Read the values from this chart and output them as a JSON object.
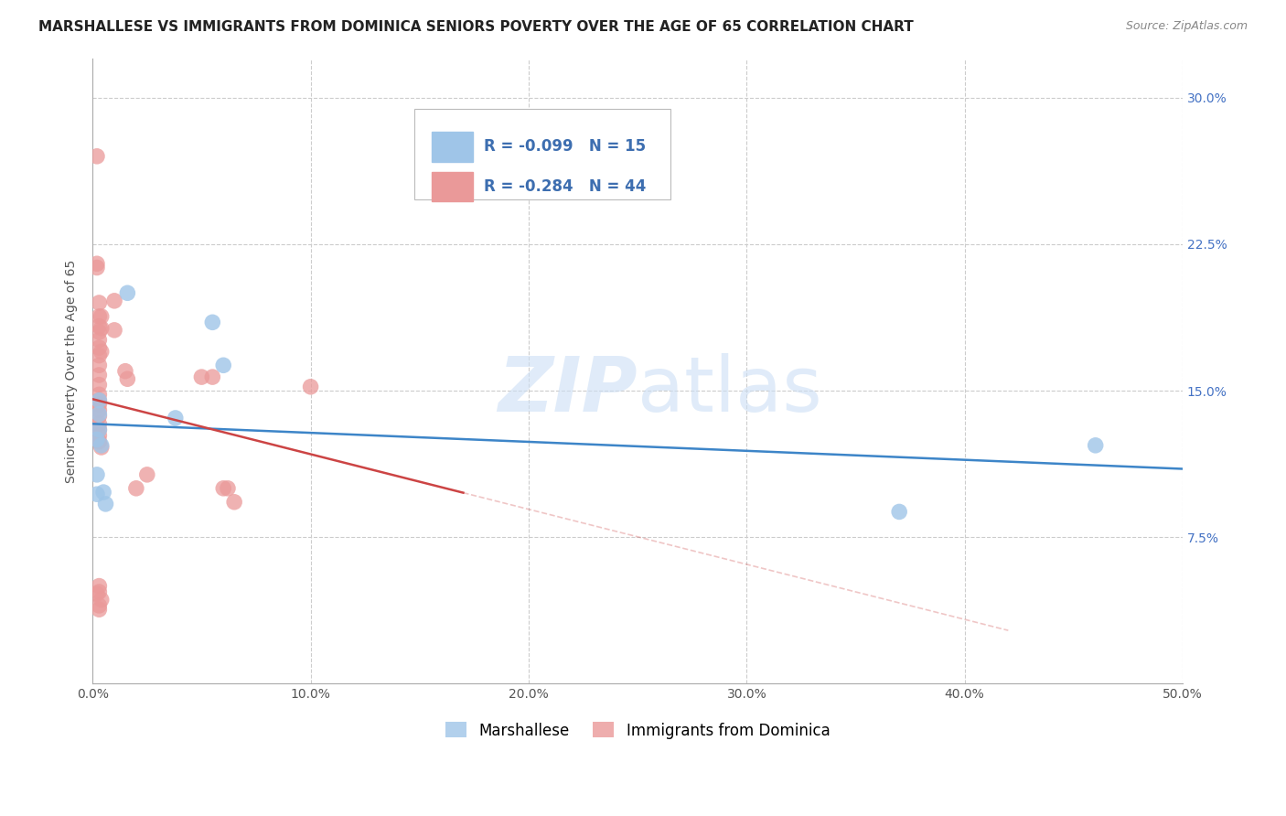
{
  "title": "MARSHALLESE VS IMMIGRANTS FROM DOMINICA SENIORS POVERTY OVER THE AGE OF 65 CORRELATION CHART",
  "source": "Source: ZipAtlas.com",
  "ylabel_label": "Seniors Poverty Over the Age of 65",
  "xlim": [
    0.0,
    0.5
  ],
  "ylim": [
    0.0,
    0.32
  ],
  "x_ticks": [
    0.0,
    0.1,
    0.2,
    0.3,
    0.4,
    0.5
  ],
  "x_tick_labels": [
    "0.0%",
    "10.0%",
    "20.0%",
    "30.0%",
    "40.0%",
    "50.0%"
  ],
  "y_ticks": [
    0.0,
    0.075,
    0.15,
    0.225,
    0.3
  ],
  "y_tick_labels_right": [
    "",
    "7.5%",
    "15.0%",
    "22.5%",
    "30.0%"
  ],
  "grid_color": "#cccccc",
  "background_color": "#ffffff",
  "blue_color": "#9fc5e8",
  "pink_color": "#ea9999",
  "blue_line_color": "#3d85c8",
  "pink_line_color": "#cc4444",
  "blue_scatter": [
    [
      0.002,
      0.097
    ],
    [
      0.002,
      0.107
    ],
    [
      0.002,
      0.125
    ],
    [
      0.003,
      0.145
    ],
    [
      0.003,
      0.138
    ],
    [
      0.003,
      0.13
    ],
    [
      0.004,
      0.122
    ],
    [
      0.005,
      0.098
    ],
    [
      0.006,
      0.092
    ],
    [
      0.016,
      0.2
    ],
    [
      0.038,
      0.136
    ],
    [
      0.055,
      0.185
    ],
    [
      0.06,
      0.163
    ],
    [
      0.37,
      0.088
    ],
    [
      0.46,
      0.122
    ]
  ],
  "pink_scatter": [
    [
      0.002,
      0.27
    ],
    [
      0.002,
      0.215
    ],
    [
      0.002,
      0.213
    ],
    [
      0.003,
      0.195
    ],
    [
      0.003,
      0.188
    ],
    [
      0.003,
      0.183
    ],
    [
      0.003,
      0.18
    ],
    [
      0.003,
      0.176
    ],
    [
      0.003,
      0.172
    ],
    [
      0.003,
      0.168
    ],
    [
      0.003,
      0.163
    ],
    [
      0.003,
      0.158
    ],
    [
      0.003,
      0.153
    ],
    [
      0.003,
      0.148
    ],
    [
      0.003,
      0.145
    ],
    [
      0.003,
      0.143
    ],
    [
      0.003,
      0.14
    ],
    [
      0.003,
      0.137
    ],
    [
      0.003,
      0.133
    ],
    [
      0.003,
      0.13
    ],
    [
      0.003,
      0.127
    ],
    [
      0.003,
      0.124
    ],
    [
      0.004,
      0.188
    ],
    [
      0.004,
      0.182
    ],
    [
      0.004,
      0.17
    ],
    [
      0.004,
      0.121
    ],
    [
      0.01,
      0.196
    ],
    [
      0.01,
      0.181
    ],
    [
      0.015,
      0.16
    ],
    [
      0.016,
      0.156
    ],
    [
      0.02,
      0.1
    ],
    [
      0.025,
      0.107
    ],
    [
      0.05,
      0.157
    ],
    [
      0.055,
      0.157
    ],
    [
      0.06,
      0.1
    ],
    [
      0.062,
      0.1
    ],
    [
      0.065,
      0.093
    ],
    [
      0.1,
      0.152
    ],
    [
      0.002,
      0.046
    ],
    [
      0.003,
      0.047
    ],
    [
      0.003,
      0.04
    ],
    [
      0.003,
      0.038
    ],
    [
      0.003,
      0.05
    ],
    [
      0.004,
      0.043
    ]
  ],
  "blue_R": -0.099,
  "blue_N": 15,
  "pink_R": -0.284,
  "pink_N": 44,
  "legend_labels": [
    "Marshallese",
    "Immigrants from Dominica"
  ],
  "watermark_text": "ZIPatlas",
  "title_fontsize": 11,
  "axis_label_fontsize": 10,
  "tick_fontsize": 10
}
